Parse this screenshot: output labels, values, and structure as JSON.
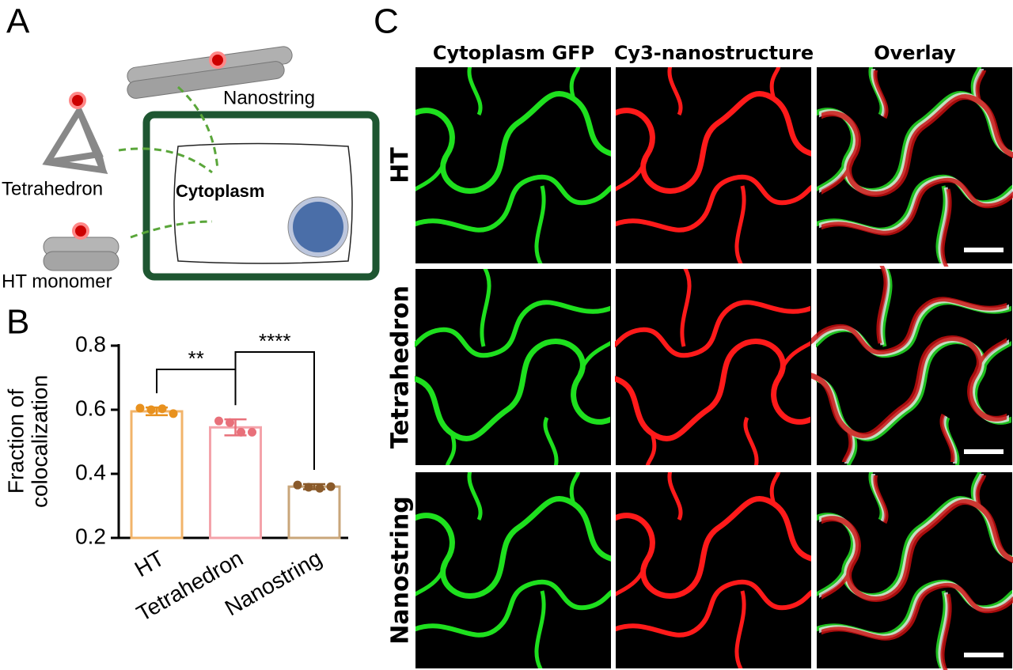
{
  "panel_a": {
    "label": "A",
    "nanostring": "Nanostring",
    "tetrahedron": "Tetrahedron",
    "cytoplasm": "Cytoplasm",
    "ht_monomer": "HT monomer"
  },
  "chart_data": {
    "type": "bar",
    "panel_label": "B",
    "ylabel": [
      "Fraction of",
      "colocalization"
    ],
    "categories": [
      "HT",
      "Tetrahedron",
      "Nanostring"
    ],
    "values": [
      0.595,
      0.545,
      0.36
    ],
    "errors": [
      0.012,
      0.025,
      0.008
    ],
    "points": [
      [
        0.605,
        0.6,
        0.603,
        0.588
      ],
      [
        0.565,
        0.56,
        0.53,
        0.53
      ],
      [
        0.365,
        0.358,
        0.355,
        0.36
      ]
    ],
    "colors": [
      "#f2b46a",
      "#f4a3aa",
      "#c9a67a"
    ],
    "point_colors": [
      "#e8911e",
      "#e8707a",
      "#8a5a2a"
    ],
    "ylim": [
      0.2,
      0.8
    ],
    "yticks": [
      0.2,
      0.4,
      0.6,
      0.8
    ],
    "significance": [
      "**",
      "****"
    ]
  },
  "panel_c": {
    "label": "C",
    "columns": [
      "Cytoplasm GFP",
      "Cy3-nanostructure",
      "Overlay"
    ],
    "rows": [
      "HT",
      "Tetrahedron",
      "Nanostring"
    ]
  }
}
